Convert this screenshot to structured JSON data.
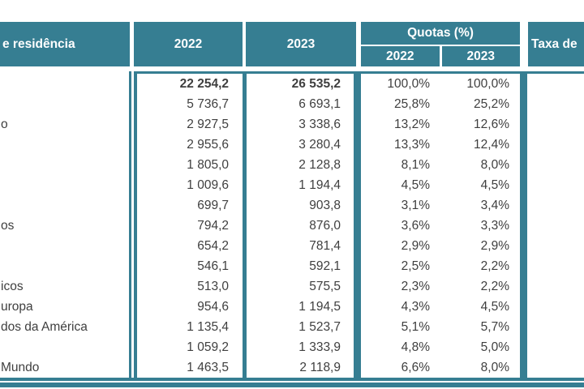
{
  "colors": {
    "teal": "#367E92",
    "body_text": "#3F3F3F",
    "header_text": "#FFFFFF",
    "background": "#FFFFFF"
  },
  "table": {
    "header": {
      "residence_label": "e residência",
      "col_2022": "2022",
      "col_2023": "2023",
      "quotas_label": "Quotas (%)",
      "quotas_2022": "2022",
      "quotas_2023": "2023",
      "taxa_label": "Taxa de"
    },
    "rows": [
      {
        "label": "",
        "v2022": "22 254,2",
        "v2023": "26 535,2",
        "q2022": "100,0%",
        "q2023": "100,0%",
        "bold": true
      },
      {
        "label": "",
        "v2022": "5 736,7",
        "v2023": "6 693,1",
        "q2022": "25,8%",
        "q2023": "25,2%",
        "bold": false
      },
      {
        "label": "o",
        "v2022": "2 927,5",
        "v2023": "3 338,6",
        "q2022": "13,2%",
        "q2023": "12,6%",
        "bold": false
      },
      {
        "label": "",
        "v2022": "2 955,6",
        "v2023": "3 280,4",
        "q2022": "13,3%",
        "q2023": "12,4%",
        "bold": false
      },
      {
        "label": "",
        "v2022": "1 805,0",
        "v2023": "2 128,8",
        "q2022": "8,1%",
        "q2023": "8,0%",
        "bold": false
      },
      {
        "label": "",
        "v2022": "1 009,6",
        "v2023": "1 194,4",
        "q2022": "4,5%",
        "q2023": "4,5%",
        "bold": false
      },
      {
        "label": "",
        "v2022": "699,7",
        "v2023": "903,8",
        "q2022": "3,1%",
        "q2023": "3,4%",
        "bold": false
      },
      {
        "label": "os",
        "v2022": "794,2",
        "v2023": "876,0",
        "q2022": "3,6%",
        "q2023": "3,3%",
        "bold": false
      },
      {
        "label": "",
        "v2022": "654,2",
        "v2023": "781,4",
        "q2022": "2,9%",
        "q2023": "2,9%",
        "bold": false
      },
      {
        "label": "",
        "v2022": "546,1",
        "v2023": "592,1",
        "q2022": "2,5%",
        "q2023": "2,2%",
        "bold": false
      },
      {
        "label": "icos",
        "v2022": "513,0",
        "v2023": "575,5",
        "q2022": "2,3%",
        "q2023": "2,2%",
        "bold": false
      },
      {
        "label": "uropa",
        "v2022": "954,6",
        "v2023": "1 194,5",
        "q2022": "4,3%",
        "q2023": "4,5%",
        "bold": false
      },
      {
        "label": "dos da América",
        "v2022": "1 135,4",
        "v2023": "1 523,7",
        "q2022": "5,1%",
        "q2023": "5,7%",
        "bold": false
      },
      {
        "label": "",
        "v2022": "1 059,2",
        "v2023": "1 333,9",
        "q2022": "4,8%",
        "q2023": "5,0%",
        "bold": false
      },
      {
        "label": "Mundo",
        "v2022": "1 463,5",
        "v2023": "2 118,9",
        "q2022": "6,6%",
        "q2023": "8,0%",
        "bold": false
      }
    ]
  },
  "chart_data": {
    "type": "table",
    "columns": [
      "e residência",
      "2022",
      "2023",
      "Quotas (%) 2022",
      "Quotas (%) 2023",
      "Taxa de"
    ],
    "row_labels": [
      "",
      "",
      "o",
      "",
      "",
      "",
      "",
      "os",
      "",
      "",
      "icos",
      "uropa",
      "dos da América",
      "",
      "Mundo"
    ],
    "rows": [
      [
        "",
        "22 254,2",
        "26 535,2",
        "100,0%",
        "100,0%",
        ""
      ],
      [
        "",
        "5 736,7",
        "6 693,1",
        "25,8%",
        "25,2%",
        ""
      ],
      [
        "o",
        "2 927,5",
        "3 338,6",
        "13,2%",
        "12,6%",
        ""
      ],
      [
        "",
        "2 955,6",
        "3 280,4",
        "13,3%",
        "12,4%",
        ""
      ],
      [
        "",
        "1 805,0",
        "2 128,8",
        "8,1%",
        "8,0%",
        ""
      ],
      [
        "",
        "1 009,6",
        "1 194,4",
        "4,5%",
        "4,5%",
        ""
      ],
      [
        "",
        "699,7",
        "903,8",
        "3,1%",
        "3,4%",
        ""
      ],
      [
        "os",
        "794,2",
        "876,0",
        "3,6%",
        "3,3%",
        ""
      ],
      [
        "",
        "654,2",
        "781,4",
        "2,9%",
        "2,9%",
        ""
      ],
      [
        "",
        "546,1",
        "592,1",
        "2,5%",
        "2,2%",
        ""
      ],
      [
        "icos",
        "513,0",
        "575,5",
        "2,3%",
        "2,2%",
        ""
      ],
      [
        "uropa",
        "954,6",
        "1 194,5",
        "4,3%",
        "4,5%",
        ""
      ],
      [
        "dos da América",
        "1 135,4",
        "1 523,7",
        "5,1%",
        "5,7%",
        ""
      ],
      [
        "",
        "1 059,2",
        "1 333,9",
        "4,8%",
        "5,0%",
        ""
      ],
      [
        "Mundo",
        "1 463,5",
        "2 118,9",
        "6,6%",
        "8,0%",
        ""
      ]
    ],
    "series": [
      {
        "name": "2022",
        "values": [
          22254.2,
          5736.7,
          2927.5,
          2955.6,
          1805.0,
          1009.6,
          699.7,
          794.2,
          654.2,
          546.1,
          513.0,
          954.6,
          1135.4,
          1059.2,
          1463.5
        ]
      },
      {
        "name": "2023",
        "values": [
          26535.2,
          6693.1,
          3338.6,
          3280.4,
          2128.8,
          1194.4,
          903.8,
          876.0,
          781.4,
          592.1,
          575.5,
          1194.5,
          1523.7,
          1333.9,
          2118.9
        ]
      },
      {
        "name": "Quotas (%) 2022",
        "values": [
          100.0,
          25.8,
          13.2,
          13.3,
          8.1,
          4.5,
          3.1,
          3.6,
          2.9,
          2.5,
          2.3,
          4.3,
          5.1,
          4.8,
          6.6
        ]
      },
      {
        "name": "Quotas (%) 2023",
        "values": [
          100.0,
          25.2,
          12.6,
          12.4,
          8.0,
          4.5,
          3.4,
          3.3,
          2.9,
          2.2,
          2.2,
          4.5,
          5.7,
          5.0,
          8.0
        ]
      }
    ]
  }
}
